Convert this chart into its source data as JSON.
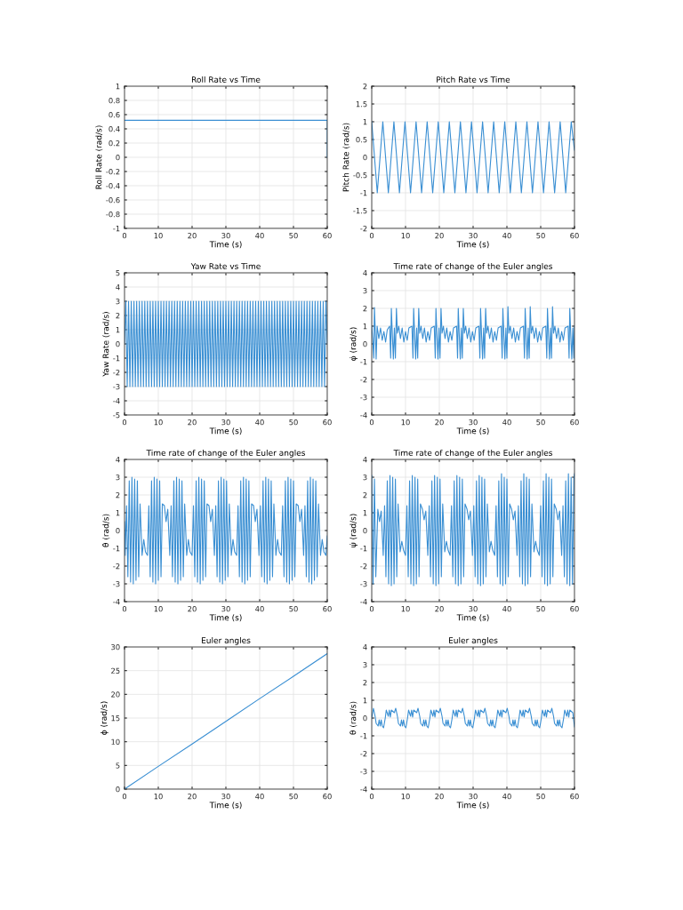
{
  "chart_data": [
    {
      "type": "line",
      "title": "Roll Rate vs Time",
      "xlabel": "Time (s)",
      "ylabel": "Roll Rate (rad/s)",
      "xlim": [
        0,
        60
      ],
      "xticks": [
        0,
        10,
        20,
        30,
        40,
        50,
        60
      ],
      "ylim": [
        -1,
        1
      ],
      "yticks": [
        -1,
        -0.8,
        -0.6,
        -0.4,
        -0.2,
        0,
        0.2,
        0.4,
        0.6,
        0.8,
        1
      ],
      "grid": true,
      "series": [
        {
          "color": "#3a8fd3",
          "x": [
            0,
            60,
            60
          ],
          "values": [
            0.52,
            0.52,
            0
          ]
        }
      ]
    },
    {
      "type": "line",
      "title": "Pitch Rate vs Time",
      "xlabel": "Time (s)",
      "ylabel": "Pitch Rate (rad/s)",
      "xlim": [
        0,
        60
      ],
      "xticks": [
        0,
        10,
        20,
        30,
        40,
        50,
        60
      ],
      "ylim": [
        -2,
        2
      ],
      "yticks": [
        -2,
        -1.5,
        -1,
        -0.5,
        0,
        0.5,
        1,
        1.5,
        2
      ],
      "grid": true,
      "series": [
        {
          "color": "#3a8fd3",
          "x": [
            0,
            0.82,
            1.64,
            2.46,
            3.28,
            4.1,
            4.92,
            5.74,
            6.56,
            7.38,
            8.2,
            9.02,
            9.84,
            10.66,
            11.48,
            12.3,
            13.12,
            13.94,
            14.76,
            15.58,
            16.4,
            17.22,
            18.04,
            18.86,
            19.68,
            20.5,
            21.32,
            22.14,
            22.96,
            23.78,
            24.6,
            25.42,
            26.24,
            27.06,
            27.88,
            28.7,
            29.52,
            30.34,
            31.16,
            31.98,
            32.8,
            33.62,
            34.44,
            35.26,
            36.08,
            36.9,
            37.72,
            38.54,
            39.36,
            40.18,
            41,
            41.82,
            42.64,
            43.46,
            44.28,
            45.1,
            45.92,
            46.74,
            47.56,
            48.38,
            49.2,
            50.02,
            50.84,
            51.66,
            52.48,
            53.3,
            54.12,
            54.94,
            55.76,
            56.58,
            57.4,
            58.22,
            59.04,
            59.86,
            60
          ],
          "values": [
            1,
            0,
            -1,
            0,
            1,
            0,
            -1,
            0,
            1,
            0,
            -1,
            0,
            1,
            0,
            -1,
            0,
            1,
            0,
            -1,
            0,
            1,
            0,
            -1,
            0,
            1,
            0,
            -1,
            0,
            1,
            0,
            -1,
            0,
            1,
            0,
            -1,
            0,
            1,
            0,
            -1,
            0,
            1,
            0,
            -1,
            0,
            1,
            0,
            -1,
            0,
            1,
            0,
            -1,
            0,
            1,
            0,
            -1,
            0,
            1,
            0,
            -1,
            0,
            1,
            0,
            -1,
            0,
            1,
            0,
            -1,
            0,
            1,
            0,
            -1,
            0,
            1,
            0.3,
            0.2
          ]
        }
      ]
    },
    {
      "type": "line",
      "title": "Yaw Rate vs Time",
      "xlabel": "Time (s)",
      "ylabel": "Yaw Rate (rad/s)",
      "xlim": [
        0,
        60
      ],
      "xticks": [
        0,
        10,
        20,
        30,
        40,
        50,
        60
      ],
      "ylim": [
        -5,
        5
      ],
      "yticks": [
        -5,
        -4,
        -3,
        -2,
        -1,
        0,
        1,
        2,
        3,
        4,
        5
      ],
      "grid": true,
      "series": [
        {
          "color": "#3a8fd3",
          "x": [
            0,
            0.4,
            0.8,
            1.2,
            1.6,
            2,
            2.4,
            2.8,
            3.2,
            3.6,
            4,
            4.4,
            4.8,
            5.2,
            5.6,
            6,
            6.4,
            6.8,
            7.2,
            7.6,
            8,
            8.4,
            8.8,
            9.2,
            9.6,
            10,
            10.4,
            10.8,
            11.2,
            11.6,
            12,
            12.4,
            12.8,
            13.2,
            13.6,
            14,
            14.4,
            14.8,
            15.2,
            15.6,
            16,
            16.4,
            16.8,
            17.2,
            17.6,
            18,
            18.4,
            18.8,
            19.2,
            19.6,
            20,
            20.4,
            20.8,
            21.2,
            21.6,
            22,
            22.4,
            22.8,
            23.2,
            23.6,
            24,
            24.4,
            24.8,
            25.2,
            25.6,
            26,
            26.4,
            26.8,
            27.2,
            27.6,
            28,
            28.4,
            28.8,
            29.2,
            29.6,
            30,
            30.4,
            30.8,
            31.2,
            31.6,
            32,
            32.4,
            32.8,
            33.2,
            33.6,
            34,
            34.4,
            34.8,
            35.2,
            35.6,
            36,
            36.4,
            36.8,
            37.2,
            37.6,
            38,
            38.4,
            38.8,
            39.2,
            39.6,
            40,
            40.4,
            40.8,
            41.2,
            41.6,
            42,
            42.4,
            42.8,
            43.2,
            43.6,
            44,
            44.4,
            44.8,
            45.2,
            45.6,
            46,
            46.4,
            46.8,
            47.2,
            47.6,
            48,
            48.4,
            48.8,
            49.2,
            49.6,
            50,
            50.4,
            50.8,
            51.2,
            51.6,
            52,
            52.4,
            52.8,
            53.2,
            53.6,
            54,
            54.4,
            54.8,
            55.2,
            55.6,
            56,
            56.4,
            56.8,
            57.2,
            57.6,
            58,
            58.4,
            58.8,
            59.2,
            59.6,
            60
          ],
          "values": [
            0,
            3,
            -3,
            3,
            -3,
            3,
            -3,
            3,
            -3,
            3,
            -3,
            3,
            -3,
            3,
            -3,
            3,
            -3,
            3,
            -3,
            3,
            -3,
            3,
            -3,
            3,
            -3,
            3,
            -3,
            3,
            -3,
            3,
            -3,
            3,
            -3,
            3,
            -3,
            3,
            -3,
            3,
            -3,
            3,
            -3,
            3,
            -3,
            3,
            -3,
            3,
            -3,
            3,
            -3,
            3,
            -3,
            3,
            -3,
            3,
            -3,
            3,
            -3,
            3,
            -3,
            3,
            -3,
            3,
            -3,
            3,
            -3,
            3,
            -3,
            3,
            -3,
            3,
            -3,
            3,
            -3,
            3,
            -3,
            3,
            -3,
            3,
            -3,
            3,
            -3,
            3,
            -3,
            3,
            -3,
            3,
            -3,
            3,
            -3,
            3,
            -3,
            3,
            -3,
            3,
            -3,
            3,
            -3,
            3,
            -3,
            3,
            -3,
            3,
            -3,
            3,
            -3,
            3,
            -3,
            3,
            -3,
            3,
            -3,
            3,
            -3,
            3,
            -3,
            3,
            -3,
            3,
            -3,
            3,
            -3,
            3,
            -3,
            3,
            -3,
            3,
            -3,
            3,
            -3,
            3,
            -3,
            3,
            -3,
            3,
            -3,
            3,
            -3,
            3,
            -3,
            3,
            -3,
            3,
            -3,
            3,
            -3,
            3,
            -3,
            3,
            -3,
            3,
            0
          ]
        }
      ]
    },
    {
      "type": "line",
      "title": "Time rate of change of the Euler angles",
      "xlabel": "Time (s)",
      "ylabel": "φ̇ (rad/s)",
      "xlim": [
        0,
        60
      ],
      "xticks": [
        0,
        10,
        20,
        30,
        40,
        50,
        60
      ],
      "ylim": [
        -4,
        4
      ],
      "yticks": [
        -4,
        -3,
        -2,
        -1,
        0,
        1,
        2,
        3,
        4
      ],
      "grid": true,
      "series": [
        {
          "color": "#3a8fd3",
          "x": [
            0,
            0.3,
            0.6,
            0.8,
            1.1,
            1.3,
            1.6,
            2.1,
            2.6,
            3.1,
            3.6,
            4.1,
            4.6,
            5.3,
            5.6,
            5.8,
            6.1,
            6.4,
            6.7,
            7.0,
            7.3,
            7.6,
            8.0,
            8.5,
            9.0,
            9.5,
            10.0,
            10.5,
            11.0,
            11.9,
            12.2,
            12.4,
            12.7,
            13.0,
            13.3,
            13.6,
            13.9,
            14.2,
            14.6,
            15.1,
            15.6,
            16.1,
            16.6,
            17.1,
            17.6,
            18.5,
            18.8,
            19.0,
            19.3,
            19.6,
            19.9,
            20.2,
            20.5,
            20.8,
            21.2,
            21.7,
            22.2,
            22.7,
            23.2,
            23.7,
            24.2,
            25.1,
            25.4,
            25.6,
            25.9,
            26.2,
            26.5,
            26.8,
            27.1,
            27.4,
            27.8,
            28.3,
            28.8,
            29.3,
            29.8,
            30.3,
            30.8,
            31.7,
            32.0,
            32.2,
            32.5,
            32.8,
            33.1,
            33.4,
            33.7,
            34.0,
            34.4,
            34.9,
            35.4,
            35.9,
            36.4,
            36.9,
            37.4,
            38.3,
            38.6,
            38.8,
            39.1,
            39.4,
            39.7,
            40.0,
            40.3,
            40.6,
            41.0,
            41.5,
            42.0,
            42.5,
            43.0,
            43.5,
            44.0,
            44.9,
            45.2,
            45.4,
            45.7,
            46.0,
            46.3,
            46.6,
            46.9,
            47.2,
            47.6,
            48.1,
            48.6,
            49.1,
            49.6,
            50.1,
            50.6,
            51.5,
            51.8,
            52.0,
            52.3,
            52.6,
            52.9,
            53.2,
            53.5,
            53.8,
            54.2,
            54.7,
            55.2,
            55.7,
            56.2,
            56.7,
            57.2,
            58.1,
            58.4,
            58.6,
            58.9,
            59.2,
            59.5,
            59.8,
            60.0
          ],
          "values": [
            1.0,
            0.2,
            -0.8,
            2.05,
            0.4,
            -0.85,
            1.0,
            0.3,
            0.9,
            0.2,
            0.7,
            0.1,
            0.8,
            1.0,
            -0.8,
            2.0,
            0.5,
            -0.85,
            0.9,
            -0.8,
            2.0,
            0.6,
            1.0,
            0.3,
            0.9,
            0.1,
            0.7,
            0.2,
            0.9,
            1.0,
            -0.8,
            2.0,
            0.5,
            -0.85,
            0.9,
            -0.8,
            2.0,
            0.6,
            1.0,
            0.3,
            0.9,
            0.1,
            0.7,
            0.2,
            0.9,
            1.0,
            -0.8,
            2.0,
            0.5,
            -0.85,
            0.9,
            -0.8,
            2.0,
            0.6,
            1.0,
            0.3,
            0.9,
            0.1,
            0.7,
            0.2,
            0.9,
            1.0,
            -0.8,
            2.0,
            0.5,
            -0.85,
            0.9,
            -0.8,
            2.0,
            0.6,
            1.0,
            0.3,
            0.9,
            0.1,
            0.7,
            0.2,
            0.9,
            1.0,
            -0.8,
            2.0,
            0.5,
            -0.85,
            0.9,
            -0.8,
            2.0,
            0.6,
            1.0,
            0.3,
            0.9,
            0.1,
            0.7,
            0.2,
            0.9,
            1.0,
            -0.8,
            2.0,
            0.5,
            -0.85,
            0.9,
            -0.8,
            2.1,
            0.6,
            1.0,
            0.3,
            0.9,
            0.1,
            0.7,
            0.2,
            0.9,
            1.0,
            -0.8,
            2.0,
            0.5,
            -0.85,
            0.9,
            -0.8,
            2.1,
            0.6,
            1.0,
            0.3,
            0.9,
            0.1,
            0.7,
            0.2,
            0.9,
            1.0,
            -0.8,
            2.0,
            0.5,
            -0.85,
            0.9,
            -0.8,
            2.1,
            0.6,
            1.0,
            0.3,
            0.9,
            0.1,
            0.7,
            0.2,
            0.9,
            1.0,
            -0.8,
            2.0,
            0.5,
            -0.85,
            0.9,
            -0.8,
            1.0
          ]
        }
      ]
    },
    {
      "type": "line",
      "title": "Time rate of change of the Euler angles",
      "xlabel": "Time (s)",
      "ylabel": "θ̇ (rad/s)",
      "xlim": [
        0,
        60
      ],
      "xticks": [
        0,
        10,
        20,
        30,
        40,
        50,
        60
      ],
      "ylim": [
        -4,
        4
      ],
      "yticks": [
        -4,
        -3,
        -2,
        -1,
        0,
        1,
        2,
        3,
        4
      ],
      "grid": true,
      "series": [
        {
          "color": "#3a8fd3",
          "x": [
            0,
            0.2,
            0.6,
            1.0,
            1.4,
            1.8,
            2.2,
            2.6,
            3.0,
            3.4,
            3.8,
            4.2,
            4.6,
            5.2,
            5.7,
            6.2,
            6.8,
            7.2,
            7.6,
            8.0,
            8.4,
            8.8,
            9.2,
            9.6,
            10.0,
            10.4,
            10.8,
            11.2,
            11.8,
            12.3,
            12.8,
            13.4,
            13.8,
            14.2,
            14.6,
            15.0,
            15.4,
            15.8,
            16.2,
            16.6,
            17.0,
            17.4,
            17.8,
            18.4,
            18.9,
            19.4,
            20.0,
            20.4,
            20.8,
            21.2,
            21.6,
            22.0,
            22.4,
            22.8,
            23.2,
            23.6,
            24.0,
            24.4,
            25.0,
            25.5,
            26.0,
            26.6,
            27.0,
            27.4,
            27.8,
            28.2,
            28.6,
            29.0,
            29.4,
            29.8,
            30.2,
            30.6,
            31.0,
            31.6,
            32.1,
            32.6,
            33.2,
            33.6,
            34.0,
            34.4,
            34.8,
            35.2,
            35.6,
            36.0,
            36.4,
            36.8,
            37.2,
            37.6,
            38.2,
            38.7,
            39.2,
            39.8,
            40.2,
            40.6,
            41.0,
            41.4,
            41.8,
            42.2,
            42.6,
            43.0,
            43.4,
            43.8,
            44.2,
            44.8,
            45.3,
            45.8,
            46.4,
            46.8,
            47.2,
            47.6,
            48.0,
            48.4,
            48.8,
            49.2,
            49.6,
            50.0,
            50.4,
            50.8,
            51.4,
            51.9,
            52.4,
            53.0,
            53.4,
            53.8,
            54.2,
            54.6,
            55.0,
            55.4,
            55.8,
            56.2,
            56.6,
            57.0,
            57.4,
            58.0,
            58.5,
            59.0,
            59.6,
            60.0
          ],
          "values": [
            0.5,
            -1.4,
            1.4,
            -2.6,
            2.8,
            -2.9,
            3.0,
            -3.0,
            2.9,
            -2.8,
            2.8,
            -2.6,
            1.5,
            -1.4,
            -0.5,
            -1.2,
            -1.4,
            1.4,
            -2.6,
            2.8,
            -2.9,
            3.0,
            -3.0,
            2.9,
            -2.8,
            2.8,
            -2.6,
            1.5,
            1.4,
            0.5,
            1.2,
            -1.4,
            1.4,
            -2.6,
            2.8,
            -2.9,
            3.0,
            -3.0,
            2.9,
            -2.8,
            2.8,
            -2.6,
            1.5,
            -1.4,
            -0.5,
            -1.2,
            -1.4,
            1.4,
            -2.6,
            2.8,
            -2.9,
            3.0,
            -3.0,
            2.9,
            -2.8,
            2.8,
            -2.6,
            1.5,
            1.4,
            0.5,
            1.2,
            -1.4,
            1.4,
            -2.6,
            2.8,
            -2.9,
            3.0,
            -3.0,
            2.9,
            -2.8,
            2.8,
            -2.6,
            1.5,
            -1.4,
            -0.5,
            -1.2,
            -1.4,
            1.4,
            -2.6,
            2.8,
            -2.9,
            3.0,
            -3.0,
            2.9,
            -2.8,
            2.8,
            -2.6,
            1.5,
            1.4,
            0.5,
            1.2,
            -1.4,
            1.4,
            -2.6,
            2.8,
            -2.9,
            3.0,
            -3.0,
            2.9,
            -2.8,
            2.8,
            -2.6,
            1.5,
            -1.4,
            -0.5,
            -1.2,
            -1.4,
            1.4,
            -2.6,
            2.8,
            -2.9,
            3.0,
            -3.0,
            2.9,
            -2.8,
            2.8,
            -2.6,
            1.5,
            1.4,
            0.5,
            1.2,
            -1.4,
            1.4,
            -2.6,
            2.8,
            -2.9,
            3.0,
            -3.0,
            2.9,
            -2.8,
            2.8,
            -2.6,
            1.5,
            -1.4,
            -0.5,
            -1.2,
            -1.4,
            -0.3
          ]
        }
      ]
    },
    {
      "type": "line",
      "title": "Time rate of change of the Euler angles",
      "xlabel": "Time (s)",
      "ylabel": "ψ̇ (rad/s)",
      "xlim": [
        0,
        60
      ],
      "xticks": [
        0,
        10,
        20,
        30,
        40,
        50,
        60
      ],
      "ylim": [
        -4,
        4
      ],
      "yticks": [
        -4,
        -3,
        -2,
        -1,
        0,
        1,
        2,
        3,
        4
      ],
      "grid": true,
      "series": [
        {
          "color": "#3a8fd3",
          "x": [
            0.0,
            0.4,
            0.8,
            1.2,
            1.8,
            2.3,
            2.8,
            3.4,
            3.8,
            4.2,
            4.6,
            5.0,
            5.4,
            5.8,
            6.2,
            6.6,
            7.0,
            7.4,
            7.8,
            8.4,
            8.9,
            9.4,
            10.0,
            10.4,
            10.8,
            11.2,
            11.6,
            12.0,
            12.4,
            12.8,
            13.2,
            13.6,
            14.0,
            14.4,
            15.0,
            15.5,
            16.0,
            16.6,
            17.0,
            17.4,
            17.8,
            18.2,
            18.6,
            19.0,
            19.4,
            19.8,
            20.2,
            20.6,
            21.0,
            21.6,
            22.1,
            22.6,
            23.2,
            23.6,
            24.0,
            24.4,
            24.8,
            25.2,
            25.6,
            26.0,
            26.4,
            26.8,
            27.2,
            27.6,
            28.2,
            28.7,
            29.2,
            29.8,
            30.2,
            30.6,
            31.0,
            31.4,
            31.8,
            32.2,
            32.6,
            33.0,
            33.4,
            33.8,
            34.2,
            34.8,
            35.3,
            35.8,
            36.4,
            36.8,
            37.2,
            37.6,
            38.0,
            38.4,
            38.8,
            39.2,
            39.6,
            40.0,
            40.4,
            40.8,
            41.4,
            41.9,
            42.4,
            43.0,
            43.4,
            43.8,
            44.2,
            44.6,
            45.0,
            45.4,
            45.8,
            46.2,
            46.6,
            47.0,
            47.4,
            48.0,
            48.5,
            49.0,
            49.6,
            50.0,
            50.4,
            50.8,
            51.2,
            51.6,
            52.0,
            52.4,
            52.8,
            53.2,
            53.6,
            54.0,
            54.6,
            55.1,
            55.6,
            56.2,
            56.6,
            57.0,
            57.4,
            57.8,
            58.2,
            58.6,
            59.0,
            59.4,
            59.8,
            60.0
          ],
          "values": [
            3.1,
            -3.0,
            2.9,
            -2.6,
            1.2,
            0.5,
            1.1,
            -1.4,
            1.4,
            -2.6,
            2.8,
            -3.0,
            3.1,
            -3.1,
            3.0,
            -3.0,
            2.9,
            -2.6,
            1.5,
            -1.2,
            -0.6,
            -1.1,
            -1.4,
            1.4,
            -2.6,
            2.8,
            -3.0,
            3.1,
            -3.1,
            3.0,
            -3.0,
            2.9,
            -2.6,
            1.5,
            1.2,
            0.6,
            1.1,
            -1.4,
            1.4,
            -2.6,
            2.8,
            -3.0,
            3.1,
            -3.1,
            3.0,
            -3.0,
            2.9,
            -2.6,
            1.5,
            -1.2,
            -0.6,
            -1.1,
            -1.4,
            1.4,
            -2.6,
            2.8,
            -3.0,
            3.1,
            -3.1,
            3.0,
            -3.0,
            2.9,
            -2.6,
            1.5,
            1.2,
            0.6,
            1.1,
            -1.4,
            1.4,
            -2.6,
            2.8,
            -3.0,
            3.1,
            -3.1,
            3.0,
            -3.0,
            2.9,
            -2.6,
            1.5,
            -1.2,
            -0.6,
            -1.1,
            -1.4,
            1.4,
            -2.6,
            2.8,
            -3.0,
            3.2,
            -3.1,
            3.0,
            -3.0,
            2.9,
            -2.6,
            1.5,
            1.2,
            0.6,
            1.1,
            -1.4,
            1.4,
            -2.6,
            2.8,
            -3.0,
            3.2,
            -3.1,
            3.0,
            -3.0,
            2.9,
            -2.6,
            1.5,
            -1.2,
            -0.6,
            -1.1,
            -1.4,
            1.4,
            -2.6,
            2.8,
            -3.0,
            3.2,
            -3.1,
            3.0,
            -3.0,
            2.9,
            -2.6,
            1.5,
            1.2,
            0.6,
            1.1,
            -1.4,
            1.4,
            -2.6,
            2.8,
            -3.0,
            3.2,
            -3.1,
            3.0,
            -3.0,
            2.9,
            3.2
          ]
        }
      ]
    },
    {
      "type": "line",
      "title": "Euler angles",
      "xlabel": "Time (s)",
      "ylabel": "ϕ (rad/s)",
      "xlim": [
        0,
        60
      ],
      "xticks": [
        0,
        10,
        20,
        30,
        40,
        50,
        60
      ],
      "ylim": [
        0,
        30
      ],
      "yticks": [
        0,
        5,
        10,
        15,
        20,
        25,
        30
      ],
      "grid": true,
      "series": [
        {
          "color": "#3a8fd3",
          "x": [
            0,
            10,
            20,
            30,
            40,
            50,
            60
          ],
          "values": [
            0,
            4.8,
            9.5,
            14.3,
            19.1,
            23.8,
            28.6
          ]
        }
      ]
    },
    {
      "type": "line",
      "title": "Euler angles",
      "xlabel": "Time (s)",
      "ylabel": "θ (rad/s)",
      "xlim": [
        0,
        60
      ],
      "xticks": [
        0,
        10,
        20,
        30,
        40,
        50,
        60
      ],
      "ylim": [
        -4,
        4
      ],
      "yticks": [
        -4,
        -3,
        -2,
        -1,
        0,
        1,
        2,
        3,
        4
      ],
      "grid": true,
      "series": [
        {
          "color": "#3a8fd3",
          "x": [
            0,
            0.5,
            1.0,
            1.3,
            1.9,
            2.2,
            2.5,
            2.8,
            3.1,
            3.5,
            4.0,
            4.3,
            4.9,
            5.2,
            5.5,
            5.8,
            6.7,
            7.1,
            7.6,
            7.9,
            8.5,
            8.8,
            9.1,
            9.4,
            9.7,
            10.1,
            10.6,
            10.9,
            11.5,
            11.8,
            12.1,
            12.4,
            13.3,
            13.7,
            14.2,
            14.5,
            15.1,
            15.4,
            15.7,
            16.0,
            16.3,
            16.7,
            17.2,
            17.5,
            18.1,
            18.4,
            18.7,
            19.0,
            19.9,
            20.3,
            20.8,
            21.1,
            21.7,
            22.0,
            22.3,
            22.6,
            22.9,
            23.3,
            23.8,
            24.1,
            24.7,
            25.0,
            25.3,
            25.6,
            26.5,
            26.9,
            27.4,
            27.7,
            28.3,
            28.6,
            28.9,
            29.2,
            29.5,
            29.9,
            30.4,
            30.7,
            31.3,
            31.6,
            31.9,
            32.2,
            33.1,
            33.5,
            34.0,
            34.3,
            34.9,
            35.2,
            35.5,
            35.8,
            36.1,
            36.5,
            37.0,
            37.3,
            37.9,
            38.2,
            38.5,
            38.8,
            39.7,
            40.1,
            40.6,
            40.9,
            41.5,
            41.8,
            42.1,
            42.4,
            42.7,
            43.1,
            43.6,
            43.9,
            44.5,
            44.8,
            45.1,
            45.4,
            46.3,
            46.7,
            47.2,
            47.5,
            48.1,
            48.4,
            48.7,
            49.0,
            49.3,
            49.7,
            50.2,
            50.5,
            51.1,
            51.4,
            51.7,
            52.0,
            52.9,
            53.3,
            53.8,
            54.1,
            54.7,
            55.0,
            55.3,
            55.6,
            55.9,
            56.3,
            56.8,
            57.1,
            57.7,
            58.0,
            58.3,
            58.6,
            59.5,
            60.0
          ],
          "values": [
            0.0,
            0.55,
            0.1,
            -0.3,
            -0.45,
            -0.1,
            -0.45,
            -0.1,
            -0.45,
            -0.55,
            0.0,
            0.45,
            0.1,
            0.45,
            0.05,
            0.45,
            0.3,
            0.55,
            0.1,
            -0.3,
            -0.45,
            -0.1,
            -0.45,
            -0.1,
            -0.45,
            -0.55,
            0.0,
            0.45,
            0.1,
            0.45,
            0.05,
            0.45,
            0.3,
            0.55,
            0.1,
            -0.3,
            -0.45,
            -0.1,
            -0.45,
            -0.1,
            -0.45,
            -0.55,
            0.0,
            0.45,
            0.1,
            0.45,
            0.05,
            0.45,
            0.3,
            0.55,
            0.1,
            -0.3,
            -0.45,
            -0.1,
            -0.45,
            -0.1,
            -0.45,
            -0.55,
            0.0,
            0.45,
            0.1,
            0.45,
            0.05,
            0.45,
            0.3,
            0.55,
            0.1,
            -0.3,
            -0.45,
            -0.1,
            -0.45,
            -0.1,
            -0.45,
            -0.55,
            0.0,
            0.45,
            0.1,
            0.45,
            0.05,
            0.45,
            0.3,
            0.55,
            0.1,
            -0.3,
            -0.45,
            -0.1,
            -0.45,
            -0.1,
            -0.45,
            -0.55,
            0.0,
            0.45,
            0.1,
            0.45,
            0.05,
            0.45,
            0.3,
            0.55,
            0.1,
            -0.3,
            -0.45,
            -0.1,
            -0.45,
            -0.1,
            -0.45,
            -0.55,
            0.0,
            0.45,
            0.1,
            0.45,
            0.05,
            0.45,
            0.3,
            0.55,
            0.1,
            -0.3,
            -0.45,
            -0.1,
            -0.45,
            -0.1,
            -0.45,
            -0.55,
            0.0,
            0.45,
            0.1,
            0.45,
            0.05,
            0.45,
            0.3,
            0.55,
            0.1,
            -0.3,
            -0.45,
            -0.1,
            -0.45,
            -0.1,
            -0.45,
            -0.55,
            0.0,
            0.45,
            0.1,
            0.45,
            0.05,
            0.45,
            0.3,
            -0.5
          ]
        }
      ]
    }
  ]
}
